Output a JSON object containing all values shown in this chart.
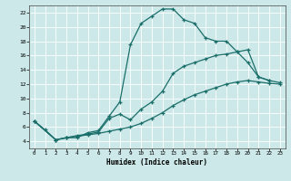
{
  "xlabel": "Humidex (Indice chaleur)",
  "background_color": "#cce8e8",
  "grid_color": "#ffffff",
  "line_color": "#1a6e6a",
  "xlim": [
    -0.5,
    23.5
  ],
  "ylim": [
    3.0,
    23.0
  ],
  "yticks": [
    4,
    6,
    8,
    10,
    12,
    14,
    16,
    18,
    20,
    22
  ],
  "xticks": [
    0,
    1,
    2,
    3,
    4,
    5,
    6,
    7,
    8,
    9,
    10,
    11,
    12,
    13,
    14,
    15,
    16,
    17,
    18,
    19,
    20,
    21,
    22,
    23
  ],
  "curve1_x": [
    0,
    1,
    2,
    3,
    4,
    5,
    6,
    7,
    8,
    9,
    10,
    11,
    12,
    13,
    14,
    15,
    16,
    17,
    18,
    19,
    20,
    21,
    22
  ],
  "curve1_y": [
    6.8,
    5.6,
    4.2,
    4.5,
    4.5,
    5.2,
    5.5,
    7.5,
    9.5,
    17.5,
    20.5,
    21.5,
    22.5,
    22.5,
    21.0,
    20.5,
    18.5,
    18.0,
    18.0,
    16.5,
    15.0,
    13.0,
    12.5
  ],
  "curve2_x": [
    0,
    2,
    3,
    4,
    5,
    6,
    7,
    8,
    9,
    10,
    11,
    12,
    13,
    14,
    15,
    16,
    17,
    18,
    19,
    20,
    21,
    22,
    23
  ],
  "curve2_y": [
    6.8,
    4.2,
    4.5,
    4.8,
    5.0,
    5.3,
    7.2,
    7.8,
    7.0,
    8.5,
    9.5,
    11.0,
    13.5,
    14.5,
    15.0,
    15.5,
    16.0,
    16.2,
    16.5,
    16.8,
    13.0,
    12.5,
    12.2
  ],
  "curve3_x": [
    0,
    2,
    3,
    4,
    5,
    6,
    7,
    8,
    9,
    10,
    11,
    12,
    13,
    14,
    15,
    16,
    17,
    18,
    19,
    20,
    21,
    22,
    23
  ],
  "curve3_y": [
    6.8,
    4.2,
    4.5,
    4.7,
    4.9,
    5.1,
    5.4,
    5.7,
    6.0,
    6.5,
    7.2,
    8.0,
    9.0,
    9.8,
    10.5,
    11.0,
    11.5,
    12.0,
    12.3,
    12.5,
    12.3,
    12.1,
    12.0
  ]
}
